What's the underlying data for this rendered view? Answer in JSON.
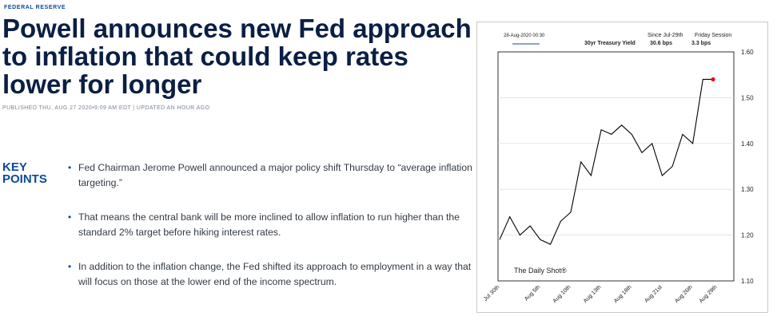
{
  "article": {
    "section": "FEDERAL RESERVE",
    "headline": "Powell announces new Fed approach to inflation that could keep rates lower for longer",
    "byline": "PUBLISHED THU, AUG 27 2020•9:09 AM EDT | UPDATED AN HOUR AGO",
    "key_points_label": "KEY POINTS",
    "key_points": [
      "Fed Chairman Jerome Powell announced a major policy shift Thursday to “average inflation targeting.”",
      "That means the central bank will be more inclined to allow inflation to run higher than the standard 2% target before hiking interest rates.",
      "In addition to the inflation change, the Fed shifted its approach to employment in a way that will focus on those at the lower end of the income spectrum."
    ]
  },
  "chart_header": {
    "timestamp": "28-Aug-2020 00:30",
    "since_label": "Since Jul-29th",
    "session_label": "Friday Session",
    "series_label": "30yr Treasury Yield",
    "since_value": "30.6 bps",
    "session_value": "3.3 bps"
  },
  "chart_data": {
    "type": "line",
    "watermark": "The Daily Shot®",
    "series": [
      {
        "x": [
          "Jul 30th",
          "Jul 31st",
          "Aug 3rd",
          "Aug 4th",
          "Aug 5th",
          "Aug 6th",
          "Aug 7th",
          "Aug 10th",
          "Aug 11th",
          "Aug 12th",
          "Aug 13th",
          "Aug 14th",
          "Aug 17th",
          "Aug 18th",
          "Aug 19th",
          "Aug 20th",
          "Aug 21st",
          "Aug 24th",
          "Aug 25th",
          "Aug 26th",
          "Aug 27th",
          "Aug 28th"
        ],
        "values": [
          1.19,
          1.24,
          1.2,
          1.22,
          1.19,
          1.18,
          1.23,
          1.25,
          1.36,
          1.33,
          1.43,
          1.42,
          1.44,
          1.42,
          1.38,
          1.4,
          1.33,
          1.35,
          1.42,
          1.4,
          1.54,
          1.54
        ],
        "color": "#000000"
      }
    ],
    "last_point": {
      "x": "Aug 28th",
      "value": 1.54,
      "color": "#e01010"
    },
    "x_tick_labels": [
      "Jul 30th",
      "Aug 5th",
      "Aug 10th",
      "Aug 13th",
      "Aug 18th",
      "Aug 21st",
      "Aug 26th",
      "Aug 29th"
    ],
    "y_tick_labels": [
      "1.60",
      "1.50",
      "1.40",
      "1.30",
      "1.20",
      "1.10"
    ],
    "ylim": [
      1.1,
      1.6
    ],
    "ylabel": "",
    "xlabel": ""
  }
}
